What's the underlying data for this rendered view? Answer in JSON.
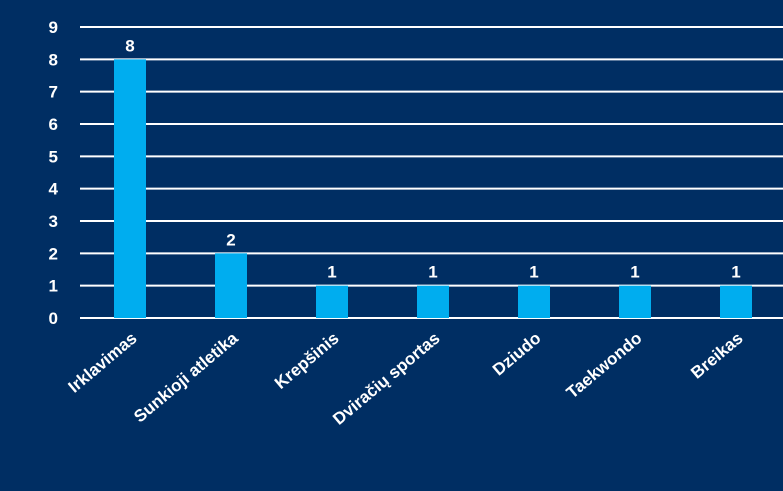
{
  "chart_data": {
    "type": "bar",
    "title": "",
    "xlabel": "",
    "ylabel": "",
    "categories": [
      "Irklavimas",
      "Sunkioji atletika",
      "Krepšinis",
      "Dviračių sportas",
      "Dziudo",
      "Taekwondo",
      "Breikas"
    ],
    "values": [
      8,
      2,
      1,
      1,
      1,
      1,
      1
    ],
    "ylim": [
      0,
      9
    ],
    "yticks": [
      0,
      1,
      2,
      3,
      4,
      5,
      6,
      7,
      8,
      9
    ],
    "grid": true,
    "legend": "none",
    "colors": {
      "background": "#002e63",
      "bar": "#00adef",
      "grid": "#ffffff",
      "text": "#ffffff"
    }
  }
}
